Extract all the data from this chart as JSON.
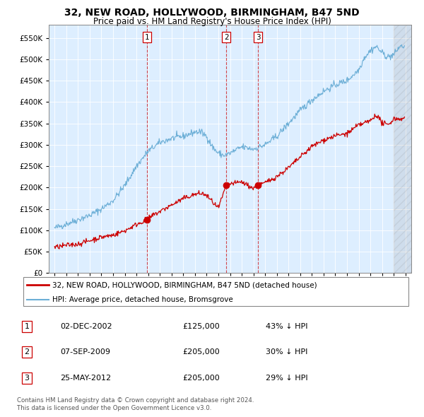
{
  "title": "32, NEW ROAD, HOLLYWOOD, BIRMINGHAM, B47 5ND",
  "subtitle": "Price paid vs. HM Land Registry's House Price Index (HPI)",
  "legend_line1": "32, NEW ROAD, HOLLYWOOD, BIRMINGHAM, B47 5ND (detached house)",
  "legend_line2": "HPI: Average price, detached house, Bromsgrove",
  "footer1": "Contains HM Land Registry data © Crown copyright and database right 2024.",
  "footer2": "This data is licensed under the Open Government Licence v3.0.",
  "table": [
    {
      "num": "1",
      "date": "02-DEC-2002",
      "price": "£125,000",
      "pct": "43% ↓ HPI"
    },
    {
      "num": "2",
      "date": "07-SEP-2009",
      "price": "£205,000",
      "pct": "30% ↓ HPI"
    },
    {
      "num": "3",
      "date": "25-MAY-2012",
      "price": "£205,000",
      "pct": "29% ↓ HPI"
    }
  ],
  "sale_dates": [
    2002.92,
    2009.68,
    2012.4
  ],
  "sale_prices": [
    125000,
    205000,
    205000
  ],
  "hpi_color": "#6baed6",
  "price_color": "#cc0000",
  "chart_bg": "#ddeeff",
  "ylim": [
    0,
    580000
  ],
  "yticks": [
    0,
    50000,
    100000,
    150000,
    200000,
    250000,
    300000,
    350000,
    400000,
    450000,
    500000,
    550000
  ],
  "xlim": [
    1994.5,
    2025.5
  ],
  "xticks": [
    1995,
    1996,
    1997,
    1998,
    1999,
    2000,
    2001,
    2002,
    2003,
    2004,
    2005,
    2006,
    2007,
    2008,
    2009,
    2010,
    2011,
    2012,
    2013,
    2014,
    2015,
    2016,
    2017,
    2018,
    2019,
    2020,
    2021,
    2022,
    2023,
    2024,
    2025
  ]
}
